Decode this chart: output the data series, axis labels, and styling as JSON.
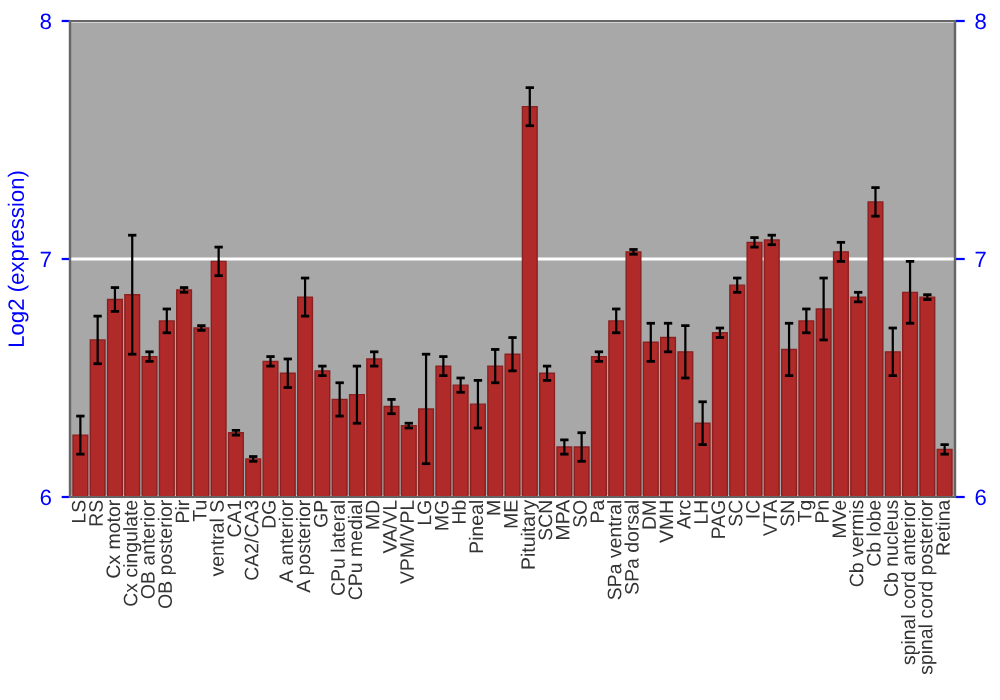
{
  "chart_data": {
    "type": "bar",
    "ylabel": "Log2 (expression)",
    "categories": [
      "LS",
      "RS",
      "Cx motor",
      "Cx cingulate",
      "OB anterior",
      "OB posterior",
      "Pir",
      "Tu",
      "ventral S",
      "CA1",
      "CA2/CA3",
      "DG",
      "A anterior",
      "A posterior",
      "GP",
      "CPu lateral",
      "CPu medial",
      "MD",
      "VA/VL",
      "VPM/VPL",
      "LG",
      "MG",
      "Hb",
      "Pineal",
      "M",
      "ME",
      "Pituitary",
      "SCN",
      "MPA",
      "SO",
      "Pa",
      "SPa ventral",
      "SPa dorsal",
      "DM",
      "VMH",
      "Arc",
      "LH",
      "PAG",
      "SC",
      "IC",
      "VTA",
      "SN",
      "Tg",
      "Pn",
      "MVe",
      "Cb vermis",
      "Cb lobe",
      "Cb nucleus",
      "spinal cord anterior",
      "spinal cord posterior",
      "Retina"
    ],
    "values": [
      6.26,
      6.66,
      6.83,
      6.85,
      6.59,
      6.74,
      6.87,
      6.71,
      6.99,
      6.27,
      6.16,
      6.57,
      6.52,
      6.84,
      6.53,
      6.41,
      6.43,
      6.58,
      6.38,
      6.3,
      6.37,
      6.55,
      6.47,
      6.39,
      6.55,
      6.6,
      7.64,
      6.52,
      6.21,
      6.21,
      6.59,
      6.74,
      7.03,
      6.65,
      6.67,
      6.61,
      6.31,
      6.69,
      6.89,
      7.07,
      7.08,
      6.62,
      6.74,
      6.79,
      7.03,
      6.84,
      7.24,
      6.61,
      6.86,
      6.84,
      6.2
    ],
    "errors": [
      0.08,
      0.1,
      0.05,
      0.25,
      0.02,
      0.05,
      0.01,
      0.01,
      0.06,
      0.01,
      0.01,
      0.02,
      0.06,
      0.08,
      0.02,
      0.07,
      0.12,
      0.03,
      0.03,
      0.01,
      0.23,
      0.04,
      0.03,
      0.1,
      0.07,
      0.07,
      0.08,
      0.03,
      0.03,
      0.06,
      0.02,
      0.05,
      0.01,
      0.08,
      0.06,
      0.11,
      0.09,
      0.02,
      0.03,
      0.02,
      0.02,
      0.11,
      0.05,
      0.13,
      0.04,
      0.02,
      0.06,
      0.1,
      0.13,
      0.01,
      0.02
    ],
    "color": "#b02a2a",
    "ylim": [
      6,
      8
    ],
    "yticks": [
      6,
      7,
      8
    ],
    "y2lim": [
      6,
      8
    ],
    "y2ticks": [
      6,
      7,
      8
    ],
    "grid": "y"
  }
}
